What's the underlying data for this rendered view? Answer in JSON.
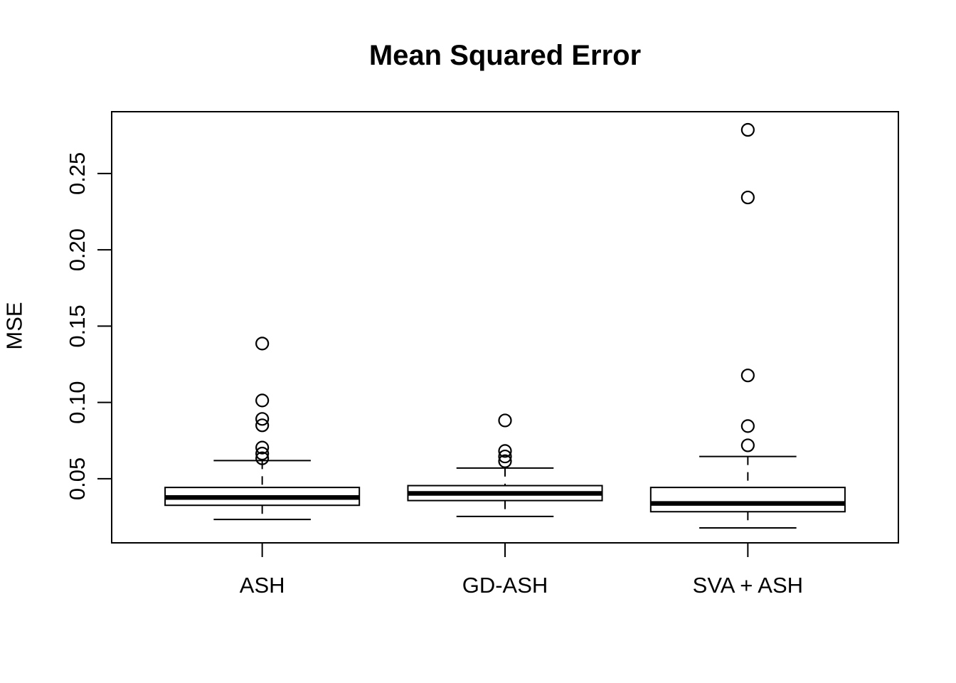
{
  "chart_data": {
    "type": "boxplot",
    "title": "Mean Squared Error",
    "ylabel": "MSE",
    "xlabel": "",
    "categories": [
      "ASH",
      "GD-ASH",
      "SVA + ASH"
    ],
    "series": [
      {
        "name": "ASH",
        "whislo": 0.0233,
        "q1": 0.0326,
        "med": 0.0377,
        "q3": 0.0443,
        "whishi": 0.0619,
        "outliers": [
          0.0634,
          0.0665,
          0.0704,
          0.085,
          0.0892,
          0.1013,
          0.1386
        ]
      },
      {
        "name": "GD-ASH",
        "whislo": 0.0253,
        "q1": 0.0357,
        "med": 0.0404,
        "q3": 0.0455,
        "whishi": 0.057,
        "outliers": [
          0.0615,
          0.0646,
          0.0682,
          0.0882
        ]
      },
      {
        "name": "SVA + ASH",
        "whislo": 0.0178,
        "q1": 0.0284,
        "med": 0.0338,
        "q3": 0.0443,
        "whishi": 0.0646,
        "outliers": [
          0.0719,
          0.0845,
          0.1177,
          0.2343,
          0.2786
        ]
      }
    ],
    "yticks": [
      0.05,
      0.1,
      0.15,
      0.2,
      0.25
    ],
    "ytick_labels": [
      "0.05",
      "0.10",
      "0.15",
      "0.20",
      "0.25"
    ],
    "ylim": [
      0.008,
      0.2905
    ],
    "xlim": [
      0.38,
      3.62
    ],
    "grid": false,
    "legend": null,
    "box_style": {
      "box_width_units": 0.8,
      "staple_width_frac": 0.5,
      "whisker_dash": "12 10",
      "outlier_marker": "open-circle"
    },
    "colors": {
      "stroke": "#000000",
      "box_fill": "#ffffff",
      "background": "#ffffff"
    }
  }
}
